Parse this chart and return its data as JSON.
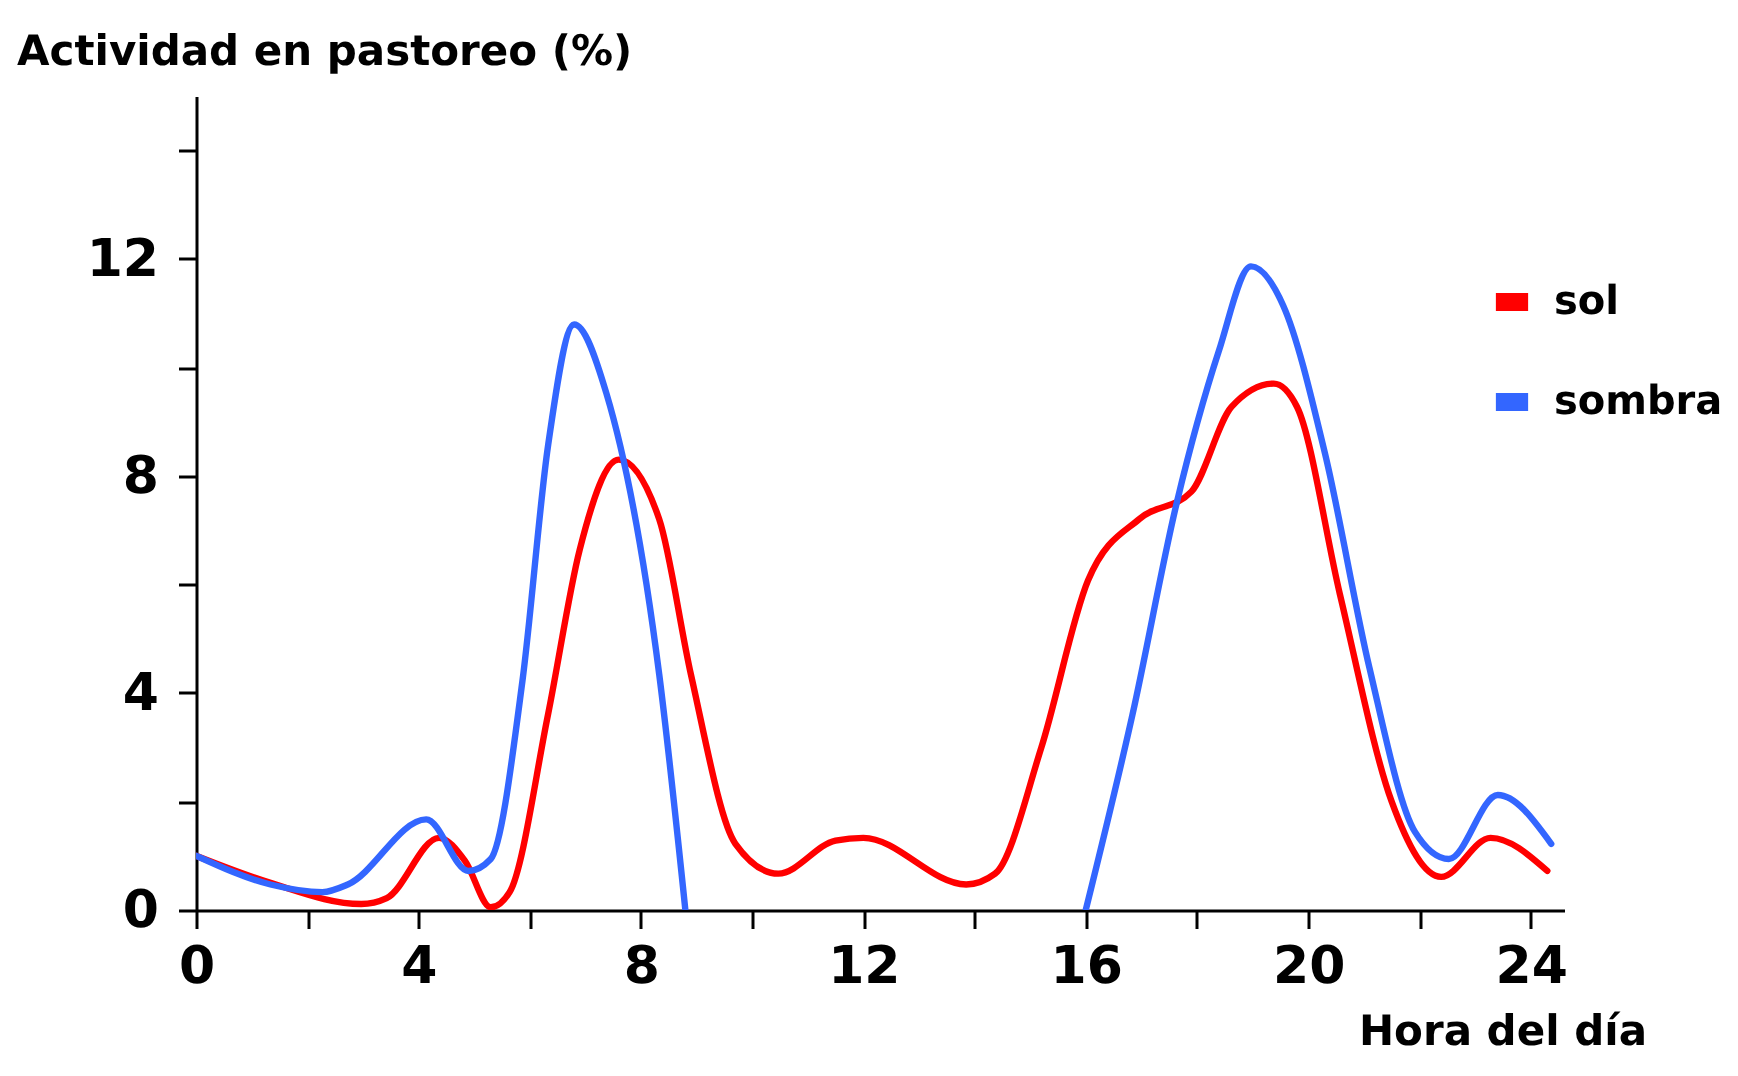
{
  "chart_data": {
    "type": "line",
    "ylabel": "Actividad en pastoreo (%)",
    "xlabel": "Hora del día",
    "xlim": [
      0,
      24.6
    ],
    "ylim": [
      0,
      15
    ],
    "xticks": [
      0,
      {
        "value": 2,
        "label": null
      },
      4,
      {
        "value": 6,
        "label": null
      },
      8,
      {
        "value": 10,
        "label": null
      },
      12,
      {
        "value": 14,
        "label": null
      },
      16,
      {
        "value": 18,
        "label": null
      },
      20,
      {
        "value": 22,
        "label": null
      },
      24
    ],
    "yticks": [
      0,
      {
        "value": 2,
        "label": null
      },
      4,
      {
        "value": 6,
        "label": null
      },
      8,
      {
        "value": 10,
        "label": null
      },
      12,
      {
        "value": 14,
        "label": null
      }
    ],
    "grid": false,
    "legend": "right",
    "marker": "none",
    "line_style": "solid",
    "series": [
      {
        "name": "sol",
        "color": "#ff0000",
        "x": [
          0,
          1.34,
          2.97,
          3.43,
          4.37,
          4.84,
          5.3,
          5.64,
          6.33,
          6.9,
          7.6,
          8.33,
          8.9,
          9.7,
          10.47,
          11.5,
          12,
          13.85,
          14.37,
          15.2,
          16.04,
          16.97,
          17.9,
          18.62,
          19.38,
          19.8,
          20.57,
          21.5,
          22.39,
          23.28,
          24.3
        ],
        "values": [
          1.0,
          0.5,
          0.11,
          0.22,
          1.33,
          0.9,
          0.05,
          0.33,
          3.6,
          6.64,
          8.3,
          7.2,
          4.34,
          1.22,
          0.67,
          1.28,
          1.33,
          0.47,
          0.67,
          2.99,
          6.07,
          7.21,
          7.71,
          9.27,
          9.7,
          9.27,
          5.82,
          2.0,
          0.61,
          1.33,
          0.72
        ]
      },
      {
        "name": "sombra",
        "color": "#3366ff",
        "x": [
          0,
          1.34,
          2.27,
          2.73,
          4.14,
          4.9,
          5.3,
          5.87,
          6.33,
          6.8,
          7.38,
          8.33,
          8.8,
          12,
          16,
          16.84,
          17.64,
          18.39,
          18.97,
          19.55,
          20.3,
          21.1,
          21.92,
          22.53,
          23.41,
          24.37
        ],
        "values": [
          1.0,
          0.47,
          0.33,
          0.47,
          1.67,
          0.72,
          0.94,
          4.22,
          8.55,
          10.79,
          9.52,
          4.34,
          0,
          null,
          0,
          3.6,
          7.52,
          10.29,
          11.86,
          11.14,
          8.42,
          4.47,
          1.44,
          0.94,
          2.12,
          1.22
        ]
      }
    ]
  }
}
